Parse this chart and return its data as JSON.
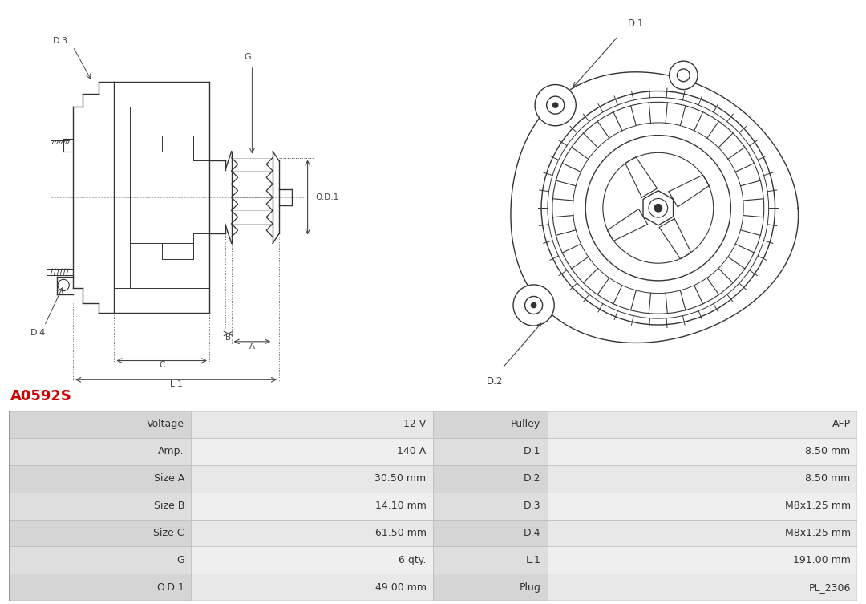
{
  "title": "A0592S",
  "title_color": "#cc0000",
  "bg_color": "#ffffff",
  "table_rows": [
    [
      "Voltage",
      "12 V",
      "Pulley",
      "AFP"
    ],
    [
      "Amp.",
      "140 A",
      "D.1",
      "8.50 mm"
    ],
    [
      "Size A",
      "30.50 mm",
      "D.2",
      "8.50 mm"
    ],
    [
      "Size B",
      "14.10 mm",
      "D.3",
      "M8x1.25 mm"
    ],
    [
      "Size C",
      "61.50 mm",
      "D.4",
      "M8x1.25 mm"
    ],
    [
      "G",
      "6 qty.",
      "L.1",
      "191.00 mm"
    ],
    [
      "O.D.1",
      "49.00 mm",
      "Plug",
      "PL_2306"
    ]
  ],
  "line_color": "#333333",
  "dim_color": "#444444"
}
